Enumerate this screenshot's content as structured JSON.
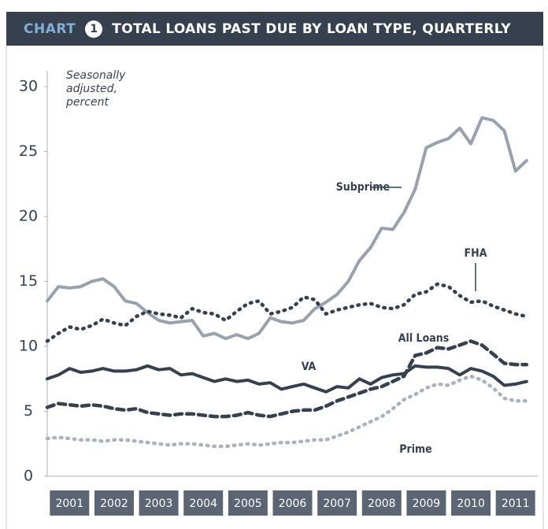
{
  "header": {
    "label": "CHART",
    "number": "1",
    "title": "TOTAL LOANS PAST DUE BY LOAN TYPE, QUARTERLY"
  },
  "chart_data": {
    "type": "line",
    "y_label": "Seasonally adjusted, percent",
    "x": [
      2001,
      2001.25,
      2001.5,
      2001.75,
      2002,
      2002.25,
      2002.5,
      2002.75,
      2003,
      2003.25,
      2003.5,
      2003.75,
      2004,
      2004.25,
      2004.5,
      2004.75,
      2005,
      2005.25,
      2005.5,
      2005.75,
      2006,
      2006.25,
      2006.5,
      2006.75,
      2007,
      2007.25,
      2007.5,
      2007.75,
      2008,
      2008.25,
      2008.5,
      2008.75,
      2009,
      2009.25,
      2009.5,
      2009.75,
      2010,
      2010.25,
      2010.5,
      2010.75,
      2011,
      2011.25,
      2011.5,
      2011.75
    ],
    "xlim": [
      2001,
      2012
    ],
    "xticks": [
      {
        "value": 2001.5,
        "label": "2001"
      },
      {
        "value": 2002.5,
        "label": "2002"
      },
      {
        "value": 2003.5,
        "label": "2003"
      },
      {
        "value": 2004.5,
        "label": "2004"
      },
      {
        "value": 2005.5,
        "label": "2005"
      },
      {
        "value": 2006.5,
        "label": "2006"
      },
      {
        "value": 2007.5,
        "label": "2007"
      },
      {
        "value": 2008.5,
        "label": "2008"
      },
      {
        "value": 2009.5,
        "label": "2009"
      },
      {
        "value": 2010.5,
        "label": "2010"
      },
      {
        "value": 2011.5,
        "label": "2011"
      }
    ],
    "ylim": [
      0,
      30
    ],
    "yticks": [
      0,
      5,
      10,
      15,
      20,
      25,
      30
    ],
    "grid": false,
    "series": [
      {
        "name": "Subprime",
        "color": "#98a1ad",
        "style": "solid",
        "values": [
          13.5,
          14.6,
          14.5,
          14.6,
          15.0,
          15.2,
          14.6,
          13.5,
          13.3,
          12.6,
          12.0,
          11.8,
          11.9,
          12.0,
          10.8,
          11.0,
          10.6,
          10.9,
          10.6,
          11.0,
          12.2,
          11.9,
          11.8,
          12.0,
          12.9,
          13.4,
          14.0,
          15.0,
          16.6,
          17.6,
          19.1,
          19.0,
          20.3,
          22.1,
          25.3,
          25.7,
          26.0,
          26.8,
          25.6,
          27.6,
          27.4,
          26.6,
          23.5,
          24.3
        ]
      },
      {
        "name": "FHA",
        "color": "#36404f",
        "style": "dotted",
        "values": [
          10.4,
          11.0,
          11.5,
          11.3,
          11.6,
          12.1,
          11.8,
          11.6,
          12.3,
          12.7,
          12.5,
          12.4,
          12.2,
          12.9,
          12.6,
          12.5,
          12.0,
          12.7,
          13.3,
          13.5,
          12.5,
          12.7,
          13.0,
          13.8,
          13.6,
          12.5,
          12.8,
          13.0,
          13.2,
          13.3,
          13.0,
          12.9,
          13.2,
          14.0,
          14.2,
          14.8,
          14.6,
          13.9,
          13.4,
          13.5,
          13.1,
          12.8,
          12.5,
          12.3
        ]
      },
      {
        "name": "All Loans",
        "color": "#36404f",
        "style": "dashed",
        "values": [
          5.3,
          5.6,
          5.5,
          5.4,
          5.5,
          5.4,
          5.2,
          5.1,
          5.2,
          4.9,
          4.8,
          4.7,
          4.8,
          4.8,
          4.7,
          4.6,
          4.6,
          4.7,
          4.9,
          4.7,
          4.6,
          4.8,
          5.0,
          5.1,
          5.1,
          5.4,
          5.8,
          6.1,
          6.4,
          6.7,
          6.9,
          7.3,
          7.7,
          9.3,
          9.5,
          9.9,
          9.8,
          10.1,
          10.4,
          10.1,
          9.4,
          8.7,
          8.6,
          8.6
        ]
      },
      {
        "name": "VA",
        "color": "#36404f",
        "style": "solid",
        "values": [
          7.5,
          7.8,
          8.3,
          8.0,
          8.1,
          8.3,
          8.1,
          8.1,
          8.2,
          8.5,
          8.2,
          8.3,
          7.8,
          7.9,
          7.6,
          7.3,
          7.5,
          7.3,
          7.4,
          7.1,
          7.2,
          6.7,
          6.9,
          7.1,
          6.8,
          6.5,
          6.9,
          6.8,
          7.5,
          7.1,
          7.6,
          7.8,
          7.9,
          8.5,
          8.4,
          8.4,
          8.3,
          7.8,
          8.3,
          8.1,
          7.7,
          7.0,
          7.1,
          7.3
        ]
      },
      {
        "name": "Prime",
        "color": "#aab2bd",
        "style": "dotted",
        "values": [
          2.9,
          3.0,
          2.9,
          2.8,
          2.8,
          2.7,
          2.8,
          2.8,
          2.7,
          2.6,
          2.5,
          2.4,
          2.5,
          2.5,
          2.4,
          2.3,
          2.3,
          2.4,
          2.5,
          2.4,
          2.5,
          2.6,
          2.6,
          2.7,
          2.8,
          2.8,
          3.1,
          3.4,
          3.8,
          4.2,
          4.6,
          5.2,
          5.9,
          6.3,
          6.8,
          7.1,
          7.0,
          7.4,
          7.7,
          7.4,
          6.8,
          6.0,
          5.8,
          5.8
        ]
      }
    ]
  }
}
